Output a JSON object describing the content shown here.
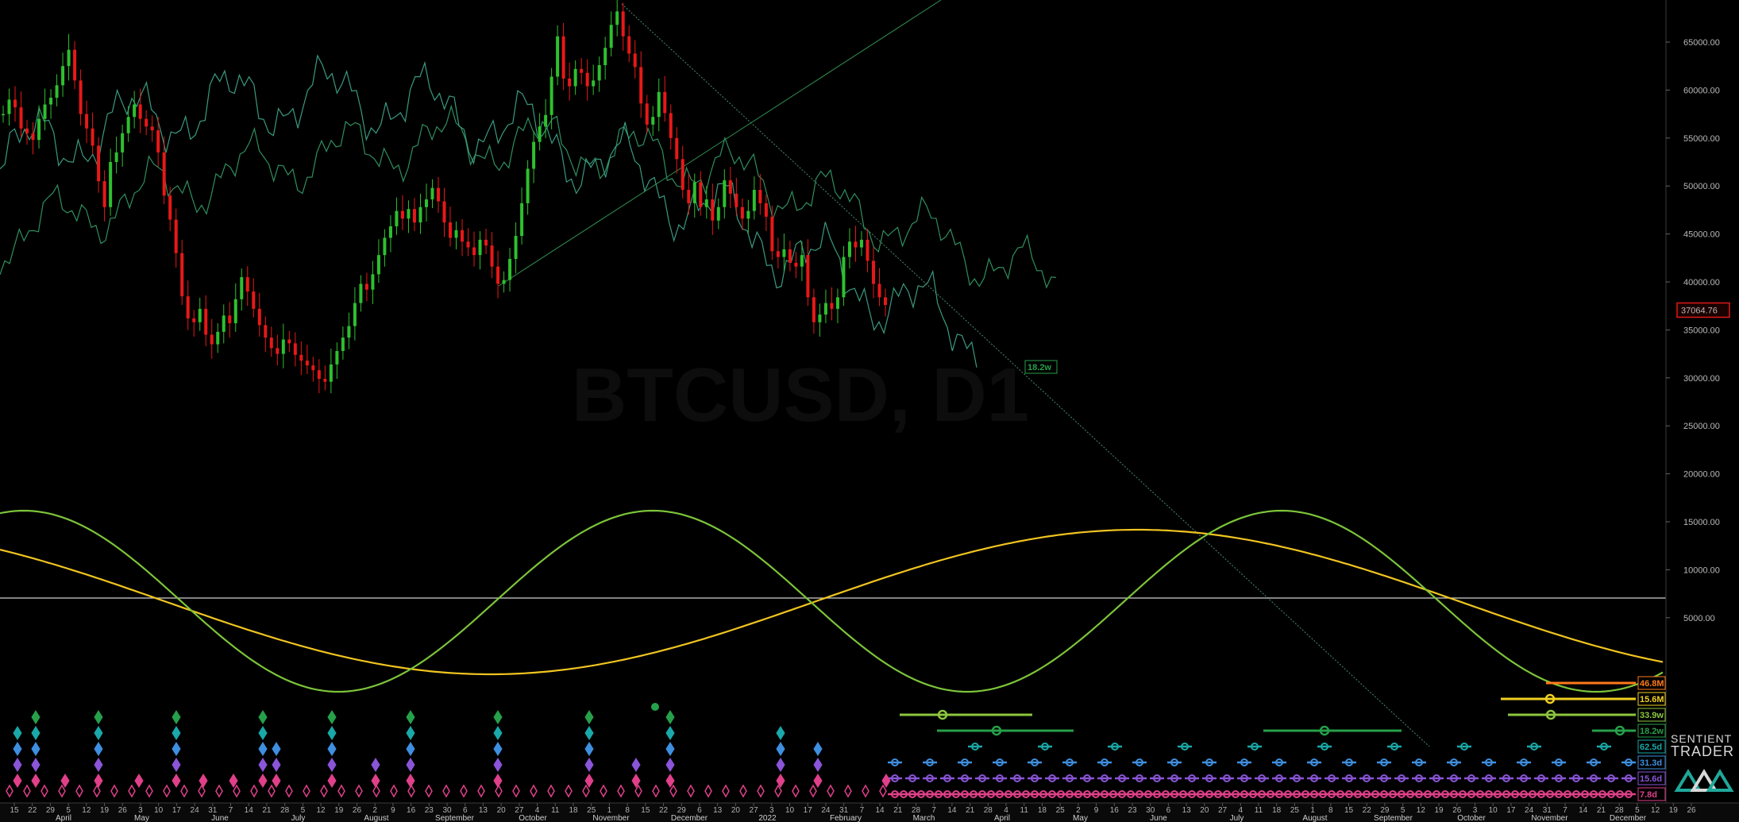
{
  "chart_data": {
    "type": "candlestick",
    "symbol_watermark": "BTCUSD, D1",
    "last_price": "37064.76",
    "y_axis": {
      "ticks": [
        "65000.00",
        "60000.00",
        "55000.00",
        "50000.00",
        "45000.00",
        "40000.00",
        "35000.00",
        "30000.00",
        "25000.00",
        "20000.00",
        "15000.00",
        "10000.00",
        "5000.00"
      ],
      "tick_values": [
        65000,
        60000,
        55000,
        50000,
        45000,
        40000,
        35000,
        30000,
        25000,
        20000,
        15000,
        10000,
        5000
      ]
    },
    "x_axis": {
      "day_ticks": [
        "15",
        "22",
        "29",
        "5",
        "12",
        "19",
        "26",
        "3",
        "10",
        "17",
        "24",
        "31",
        "7",
        "14",
        "21",
        "28",
        "5",
        "12",
        "19",
        "26",
        "2",
        "9",
        "16",
        "23",
        "30",
        "6",
        "13",
        "20",
        "27",
        "4",
        "11",
        "18",
        "25",
        "1",
        "8",
        "15",
        "22",
        "29",
        "6",
        "13",
        "20",
        "27",
        "3",
        "10",
        "17",
        "24",
        "31",
        "7",
        "14",
        "21",
        "28",
        "7",
        "14",
        "21",
        "28",
        "4",
        "11",
        "18",
        "25",
        "2",
        "9",
        "16",
        "23",
        "30",
        "6",
        "13",
        "20",
        "27",
        "4",
        "11",
        "18",
        "25",
        "1",
        "8",
        "15",
        "22",
        "29",
        "5",
        "12",
        "19",
        "26",
        "3",
        "10",
        "17",
        "24",
        "31",
        "7",
        "14",
        "21",
        "28",
        "5",
        "12",
        "19",
        "26"
      ],
      "month_labels": [
        "April",
        "May",
        "June",
        "July",
        "August",
        "September",
        "October",
        "November",
        "December",
        "2022",
        "February",
        "March",
        "April",
        "May",
        "June",
        "July",
        "August",
        "September",
        "October",
        "November",
        "December"
      ]
    },
    "price_series": {
      "name": "BTCUSD",
      "values": [
        57500,
        59000,
        58200,
        56000,
        55500,
        54800,
        57000,
        58500,
        59200,
        60500,
        62500,
        64200,
        61000,
        57500,
        56000,
        54200,
        50500,
        47800,
        52500,
        53500,
        55500,
        57200,
        58500,
        57000,
        56200,
        55800,
        53500,
        49000,
        46500,
        43000,
        38500,
        36200,
        35800,
        37200,
        34500,
        33500,
        34800,
        36500,
        35700,
        38200,
        40500,
        39000,
        37200,
        35500,
        34200,
        33100,
        32500,
        34000,
        33600,
        32400,
        31800,
        31300,
        30800,
        29900,
        29600,
        31400,
        32800,
        34200,
        35400,
        37800,
        39800,
        39200,
        40800,
        42800,
        44600,
        45800,
        47400,
        46600,
        47600,
        46200,
        47800,
        48600,
        49800,
        48400,
        46200,
        44600,
        45400,
        44200,
        43600,
        42800,
        44400,
        43800,
        41600,
        39800,
        40200,
        42400,
        44800,
        48200,
        51800,
        54600,
        56200,
        57400,
        61400,
        65600,
        61200,
        60400,
        62200,
        61800,
        60400,
        61000,
        62600,
        64400,
        66800,
        68200,
        65600,
        63800,
        62400,
        58600,
        56400,
        57200,
        59800,
        57600,
        55000,
        52800,
        49600,
        48200,
        50400,
        47800,
        48600,
        46400,
        47800,
        50600,
        49200,
        47800,
        46600,
        47400,
        49600,
        48200,
        46800,
        43200,
        42600,
        43400,
        42000,
        41600,
        42800,
        38400,
        35800,
        36600,
        37800,
        37200,
        38400,
        42600,
        44200,
        43600,
        44400,
        42200,
        39800,
        38400,
        37600
      ],
      "color_up": "#2ec02e",
      "color_down": "#e81818"
    },
    "overlays": [
      {
        "name": "overlay-green-line-1",
        "color": "#2f8f5f"
      },
      {
        "name": "overlay-green-line-2",
        "color": "#3a9a80"
      }
    ],
    "cycles": [
      {
        "label": "46.8M",
        "color": "#ff7a1a"
      },
      {
        "label": "15.6M",
        "color": "#f0d020"
      },
      {
        "label": "33.9w",
        "color": "#8cc63e"
      },
      {
        "label": "18.2w",
        "color": "#26a04a"
      },
      {
        "label": "62.5d",
        "color": "#1aa8a8"
      },
      {
        "label": "31.3d",
        "color": "#3f8fe0"
      },
      {
        "label": "15.6d",
        "color": "#8a55d8"
      },
      {
        "label": "7.8d",
        "color": "#e0408a"
      }
    ],
    "annotations": [
      "18.2w"
    ],
    "reference_line": {
      "color": "#d0d0d0"
    }
  },
  "branding": {
    "logo_line1": "SENTIENT",
    "logo_line2": "TRADER"
  }
}
